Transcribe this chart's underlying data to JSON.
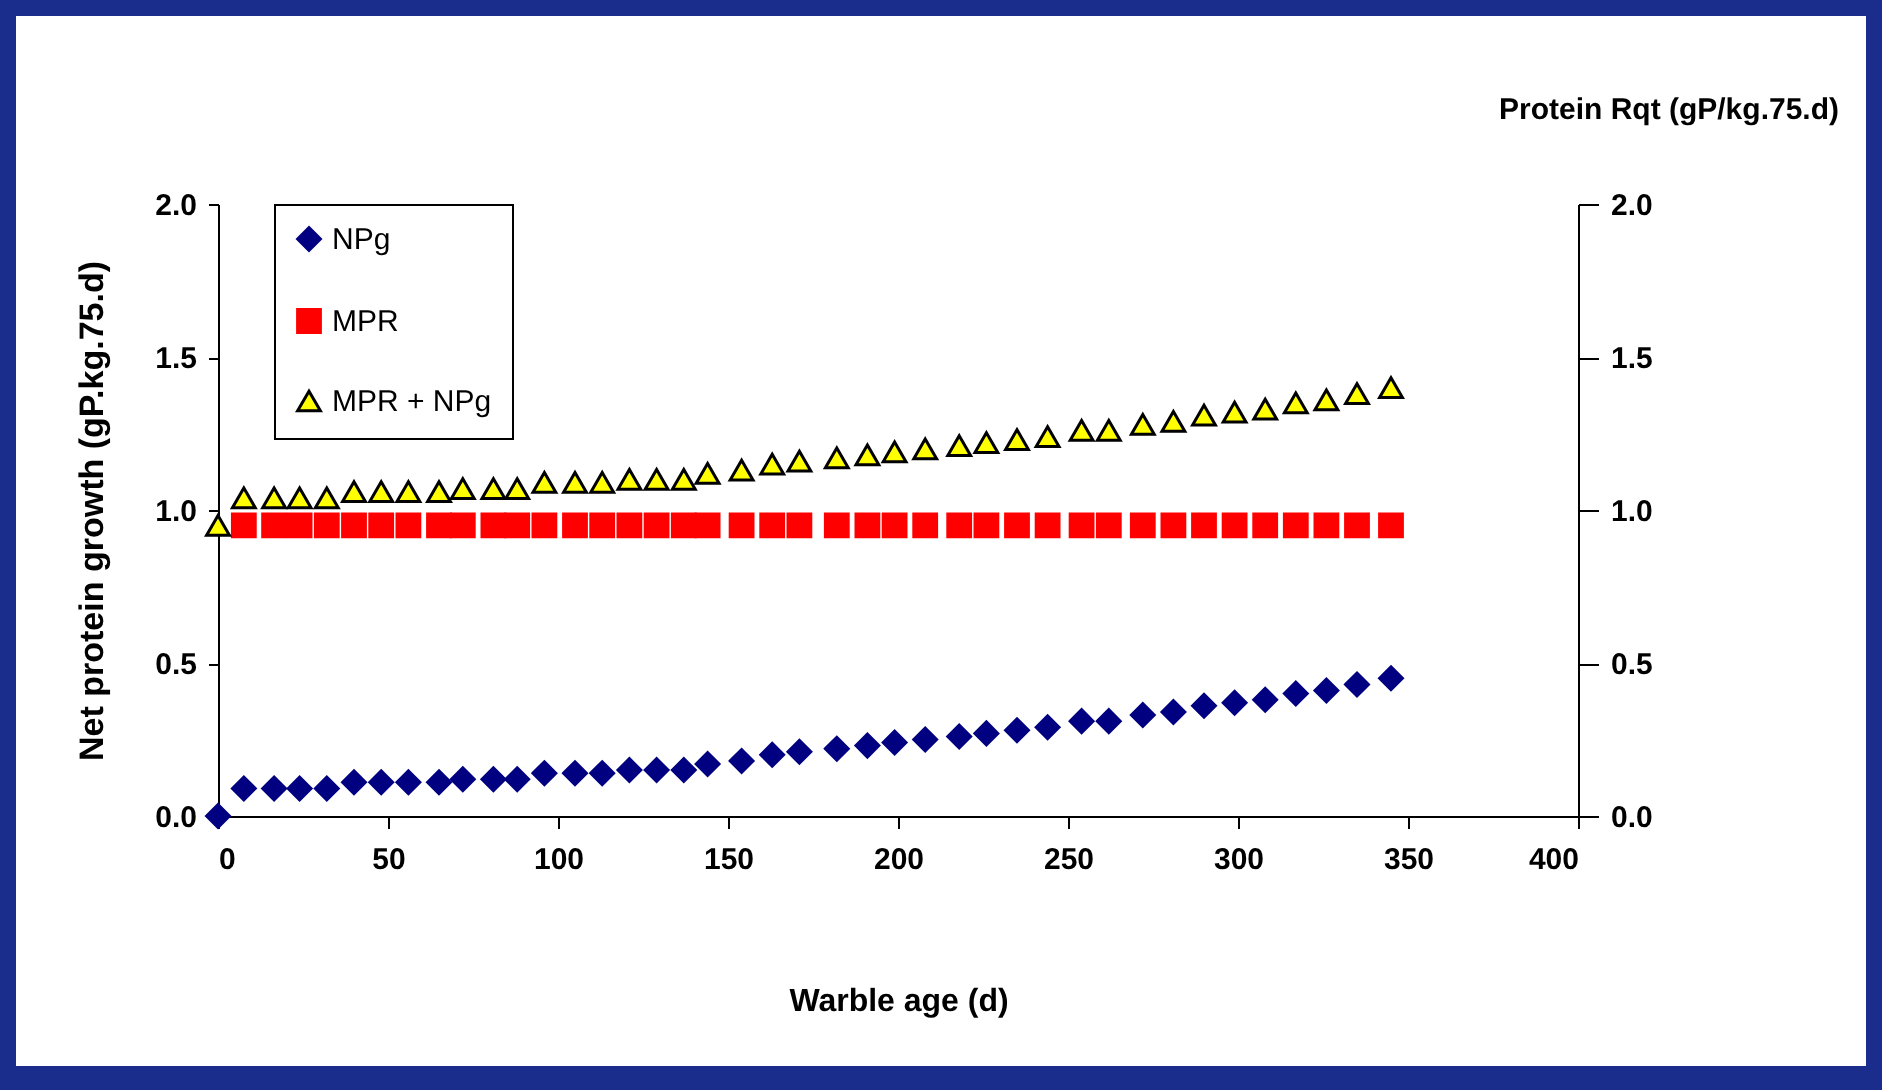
{
  "chart_data": {
    "type": "scatter",
    "xlabel": "Warble age (d)",
    "ylabel": "Net protein growth (gP.kg.75.d)",
    "y2label": "Protein Rqt (gP/kg.75.d)",
    "x": [
      0,
      7.6,
      16.5,
      24,
      32,
      40,
      48,
      56,
      65,
      72,
      81,
      88,
      96,
      105,
      113,
      121,
      129,
      137,
      144,
      154,
      163,
      171,
      182,
      191,
      199,
      208,
      218,
      226,
      235,
      244,
      254,
      262,
      272,
      281,
      290,
      299,
      308,
      317,
      326,
      335,
      345
    ],
    "series": [
      {
        "name": "NPg",
        "color": "#000080",
        "marker": "diamond",
        "values": [
          0,
          0.09,
          0.09,
          0.09,
          0.09,
          0.11,
          0.11,
          0.11,
          0.11,
          0.12,
          0.12,
          0.12,
          0.14,
          0.14,
          0.14,
          0.15,
          0.15,
          0.15,
          0.17,
          0.18,
          0.2,
          0.21,
          0.22,
          0.23,
          0.24,
          0.25,
          0.26,
          0.27,
          0.28,
          0.29,
          0.31,
          0.31,
          0.33,
          0.34,
          0.36,
          0.37,
          0.38,
          0.4,
          0.41,
          0.43,
          0.45
        ]
      },
      {
        "name": "MPR",
        "color": "#ff0000",
        "marker": "square",
        "values": [
          null,
          0.95,
          0.95,
          0.95,
          0.95,
          0.95,
          0.95,
          0.95,
          0.95,
          0.95,
          0.95,
          0.95,
          0.95,
          0.95,
          0.95,
          0.95,
          0.95,
          0.95,
          0.95,
          0.95,
          0.95,
          0.95,
          0.95,
          0.95,
          0.95,
          0.95,
          0.95,
          0.95,
          0.95,
          0.95,
          0.95,
          0.95,
          0.95,
          0.95,
          0.95,
          0.95,
          0.95,
          0.95,
          0.95,
          0.95,
          0.95
        ]
      },
      {
        "name": "MPR + NPg",
        "color": "#ffff00",
        "marker": "triangle",
        "values": [
          0.95,
          1.04,
          1.04,
          1.04,
          1.04,
          1.06,
          1.06,
          1.06,
          1.06,
          1.07,
          1.07,
          1.07,
          1.09,
          1.09,
          1.09,
          1.1,
          1.1,
          1.1,
          1.12,
          1.13,
          1.15,
          1.16,
          1.17,
          1.18,
          1.19,
          1.2,
          1.21,
          1.22,
          1.23,
          1.24,
          1.26,
          1.26,
          1.28,
          1.29,
          1.31,
          1.32,
          1.33,
          1.35,
          1.36,
          1.38,
          1.4
        ]
      }
    ],
    "xlim": [
      0,
      400
    ],
    "xticks": [
      0,
      50,
      100,
      150,
      200,
      250,
      300,
      350,
      400
    ],
    "ylim": [
      0,
      2
    ],
    "yticks": [
      {
        "value": 0,
        "label": "0.0"
      },
      0.5,
      {
        "value": 1,
        "label": "1.0"
      },
      1.5,
      {
        "value": 2,
        "label": "2.0"
      }
    ],
    "y2lim": [
      0,
      2
    ],
    "y2ticks": [
      {
        "value": 0,
        "label": "0.0"
      },
      0.5,
      {
        "value": 1,
        "label": "1.0"
      },
      1.5,
      {
        "value": 2,
        "label": "2.0"
      }
    ],
    "legend": "top left",
    "grid": false
  }
}
